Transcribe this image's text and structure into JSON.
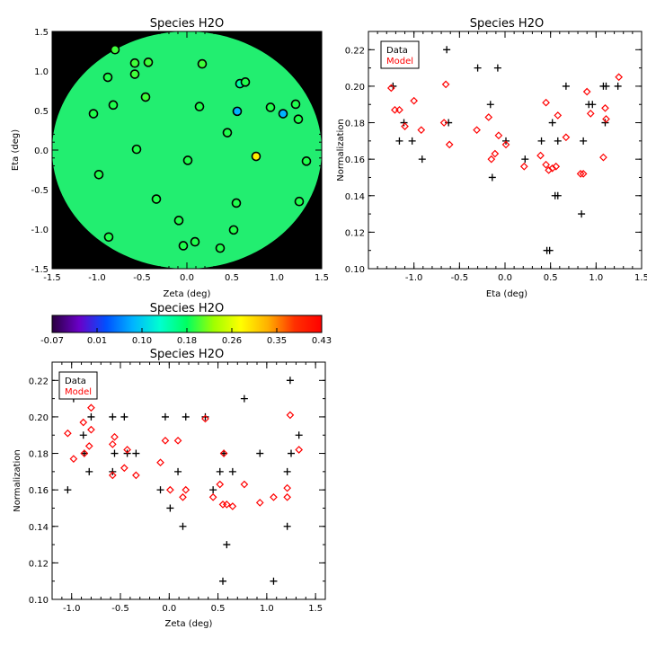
{
  "colors": {
    "data": "#000000",
    "model": "#ff0000",
    "background_mask": "#000000"
  },
  "chart_data": [
    {
      "type": "scatter",
      "subtype": "sky-map",
      "title": "Species H2O",
      "xlabel": "Zeta (deg)",
      "ylabel": "Eta (deg)",
      "xlim": [
        -1.5,
        1.5
      ],
      "ylim": [
        -1.5,
        1.5
      ],
      "xticks": [
        "-1.5",
        "-1.0",
        "-0.5",
        "0.0",
        "0.5",
        "1.0",
        "1.5"
      ],
      "yticks": [
        "-1.5",
        "-1.0",
        "-0.5",
        "0.0",
        "0.5",
        "1.0",
        "1.5"
      ],
      "field_radius": 1.5,
      "points": [
        {
          "x": -0.8,
          "y": 1.27,
          "v": 0.2
        },
        {
          "x": -0.58,
          "y": 1.1,
          "v": 0.2
        },
        {
          "x": -0.43,
          "y": 1.11,
          "v": 0.2
        },
        {
          "x": 0.17,
          "y": 1.09,
          "v": 0.2
        },
        {
          "x": -0.88,
          "y": 0.92,
          "v": 0.19
        },
        {
          "x": -0.58,
          "y": 0.96,
          "v": 0.2
        },
        {
          "x": 0.59,
          "y": 0.84,
          "v": 0.15
        },
        {
          "x": 0.65,
          "y": 0.86,
          "v": 0.19
        },
        {
          "x": -0.46,
          "y": 0.67,
          "v": 0.2
        },
        {
          "x": -0.82,
          "y": 0.57,
          "v": 0.19
        },
        {
          "x": -1.04,
          "y": 0.46,
          "v": 0.19
        },
        {
          "x": 0.14,
          "y": 0.55,
          "v": 0.19
        },
        {
          "x": 0.56,
          "y": 0.49,
          "v": 0.08
        },
        {
          "x": 0.93,
          "y": 0.54,
          "v": 0.19
        },
        {
          "x": 1.07,
          "y": 0.46,
          "v": 0.08
        },
        {
          "x": 1.21,
          "y": 0.58,
          "v": 0.19
        },
        {
          "x": 1.24,
          "y": 0.39,
          "v": 0.19
        },
        {
          "x": 0.45,
          "y": 0.22,
          "v": 0.19
        },
        {
          "x": -0.56,
          "y": 0.01,
          "v": 0.19
        },
        {
          "x": 0.77,
          "y": -0.08,
          "v": 0.29
        },
        {
          "x": 1.33,
          "y": -0.14,
          "v": 0.19
        },
        {
          "x": 0.01,
          "y": -0.13,
          "v": 0.19
        },
        {
          "x": -0.98,
          "y": -0.31,
          "v": 0.19
        },
        {
          "x": -0.34,
          "y": -0.62,
          "v": 0.19
        },
        {
          "x": 0.55,
          "y": -0.67,
          "v": 0.19
        },
        {
          "x": 1.25,
          "y": -0.65,
          "v": 0.19
        },
        {
          "x": -0.09,
          "y": -0.89,
          "v": 0.19
        },
        {
          "x": 0.52,
          "y": -1.01,
          "v": 0.19
        },
        {
          "x": -0.87,
          "y": -1.1,
          "v": 0.19
        },
        {
          "x": 0.09,
          "y": -1.16,
          "v": 0.19
        },
        {
          "x": -0.04,
          "y": -1.21,
          "v": 0.19
        },
        {
          "x": 0.37,
          "y": -1.24,
          "v": 0.19
        }
      ]
    },
    {
      "type": "colorbar",
      "title": "Species H2O",
      "range": [
        -0.07,
        0.43
      ],
      "tick_labels": [
        "-0.07",
        "0.01",
        "0.10",
        "0.18",
        "0.26",
        "0.35",
        "0.43"
      ],
      "stops": [
        "#2a0040",
        "#6a00c8",
        "#0050ff",
        "#00b4ff",
        "#00ffd0",
        "#00ff60",
        "#a0ff00",
        "#ffff00",
        "#ffb000",
        "#ff3000",
        "#ff0000"
      ]
    },
    {
      "type": "scatter",
      "title": "Species H2O",
      "xlabel": "Eta (deg)",
      "ylabel": "Normalization",
      "xlim": [
        -1.5,
        1.5
      ],
      "ylim": [
        0.1,
        0.23
      ],
      "xticks": [
        "-1.0",
        "-0.5",
        "0.0",
        "0.5",
        "1.0",
        "1.5"
      ],
      "yticks": [
        "0.10",
        "0.12",
        "0.14",
        "0.16",
        "0.18",
        "0.20",
        "0.22"
      ],
      "legend": [
        "Data",
        "Model"
      ],
      "legend_position": "top-left",
      "series": [
        {
          "name": "Data",
          "marker": "plus",
          "points": [
            [
              -1.23,
              0.2
            ],
            [
              -1.16,
              0.17
            ],
            [
              -1.11,
              0.18
            ],
            [
              -1.02,
              0.17
            ],
            [
              -0.91,
              0.16
            ],
            [
              -0.64,
              0.22
            ],
            [
              -0.62,
              0.18
            ],
            [
              -0.3,
              0.21
            ],
            [
              -0.16,
              0.19
            ],
            [
              -0.14,
              0.15
            ],
            [
              -0.08,
              0.21
            ],
            [
              0.01,
              0.17
            ],
            [
              0.22,
              0.16
            ],
            [
              0.4,
              0.17
            ],
            [
              0.46,
              0.11
            ],
            [
              0.49,
              0.11
            ],
            [
              0.52,
              0.18
            ],
            [
              0.55,
              0.14
            ],
            [
              0.58,
              0.14
            ],
            [
              0.58,
              0.17
            ],
            [
              0.67,
              0.2
            ],
            [
              0.84,
              0.13
            ],
            [
              0.86,
              0.17
            ],
            [
              0.92,
              0.19
            ],
            [
              0.96,
              0.19
            ],
            [
              1.08,
              0.2
            ],
            [
              1.1,
              0.18
            ],
            [
              1.11,
              0.2
            ],
            [
              1.24,
              0.2
            ]
          ]
        },
        {
          "name": "Model",
          "marker": "diamond",
          "points": [
            [
              -1.25,
              0.199
            ],
            [
              -1.21,
              0.187
            ],
            [
              -1.16,
              0.187
            ],
            [
              -1.1,
              0.178
            ],
            [
              -1.0,
              0.192
            ],
            [
              -0.92,
              0.176
            ],
            [
              -0.67,
              0.18
            ],
            [
              -0.65,
              0.201
            ],
            [
              -0.61,
              0.168
            ],
            [
              -0.31,
              0.176
            ],
            [
              -0.18,
              0.183
            ],
            [
              -0.15,
              0.16
            ],
            [
              -0.11,
              0.163
            ],
            [
              -0.07,
              0.173
            ],
            [
              0.01,
              0.168
            ],
            [
              0.21,
              0.156
            ],
            [
              0.39,
              0.162
            ],
            [
              0.45,
              0.191
            ],
            [
              0.45,
              0.157
            ],
            [
              0.48,
              0.154
            ],
            [
              0.52,
              0.155
            ],
            [
              0.56,
              0.156
            ],
            [
              0.58,
              0.184
            ],
            [
              0.67,
              0.172
            ],
            [
              0.83,
              0.152
            ],
            [
              0.86,
              0.152
            ],
            [
              0.9,
              0.197
            ],
            [
              0.94,
              0.185
            ],
            [
              1.08,
              0.161
            ],
            [
              1.1,
              0.188
            ],
            [
              1.11,
              0.182
            ],
            [
              1.25,
              0.205
            ]
          ]
        }
      ]
    },
    {
      "type": "scatter",
      "title": "Species H2O",
      "xlabel": "Zeta (deg)",
      "ylabel": "Normalization",
      "xlim": [
        -1.2,
        1.6
      ],
      "ylim": [
        0.1,
        0.23
      ],
      "xticks": [
        "-1.0",
        "-0.5",
        "0.0",
        "0.5",
        "1.0",
        "1.5"
      ],
      "yticks": [
        "0.10",
        "0.12",
        "0.14",
        "0.16",
        "0.18",
        "0.20",
        "0.22"
      ],
      "legend": [
        "Data",
        "Model"
      ],
      "legend_position": "top-left",
      "series": [
        {
          "name": "Data",
          "marker": "plus",
          "points": [
            [
              -1.04,
              0.16
            ],
            [
              -0.98,
              0.21
            ],
            [
              -0.88,
              0.19
            ],
            [
              -0.87,
              0.18
            ],
            [
              -0.82,
              0.17
            ],
            [
              -0.8,
              0.2
            ],
            [
              -0.58,
              0.2
            ],
            [
              -0.58,
              0.17
            ],
            [
              -0.56,
              0.18
            ],
            [
              -0.46,
              0.2
            ],
            [
              -0.43,
              0.18
            ],
            [
              -0.34,
              0.18
            ],
            [
              -0.09,
              0.16
            ],
            [
              -0.04,
              0.2
            ],
            [
              0.01,
              0.15
            ],
            [
              0.09,
              0.17
            ],
            [
              0.14,
              0.14
            ],
            [
              0.17,
              0.2
            ],
            [
              0.37,
              0.2
            ],
            [
              0.45,
              0.16
            ],
            [
              0.52,
              0.17
            ],
            [
              0.55,
              0.11
            ],
            [
              0.56,
              0.18
            ],
            [
              0.59,
              0.13
            ],
            [
              0.65,
              0.17
            ],
            [
              0.77,
              0.21
            ],
            [
              0.93,
              0.18
            ],
            [
              1.07,
              0.11
            ],
            [
              1.21,
              0.14
            ],
            [
              1.21,
              0.17
            ],
            [
              1.24,
              0.22
            ],
            [
              1.25,
              0.18
            ],
            [
              1.33,
              0.19
            ]
          ]
        },
        {
          "name": "Model",
          "marker": "diamond",
          "points": [
            [
              -1.04,
              0.191
            ],
            [
              -0.98,
              0.177
            ],
            [
              -0.88,
              0.197
            ],
            [
              -0.87,
              0.18
            ],
            [
              -0.82,
              0.184
            ],
            [
              -0.8,
              0.205
            ],
            [
              -0.8,
              0.193
            ],
            [
              -0.58,
              0.168
            ],
            [
              -0.58,
              0.185
            ],
            [
              -0.56,
              0.189
            ],
            [
              -0.46,
              0.172
            ],
            [
              -0.43,
              0.182
            ],
            [
              -0.34,
              0.168
            ],
            [
              -0.09,
              0.175
            ],
            [
              -0.04,
              0.187
            ],
            [
              0.01,
              0.16
            ],
            [
              0.09,
              0.187
            ],
            [
              0.14,
              0.156
            ],
            [
              0.17,
              0.16
            ],
            [
              0.37,
              0.199
            ],
            [
              0.45,
              0.156
            ],
            [
              0.52,
              0.163
            ],
            [
              0.55,
              0.152
            ],
            [
              0.56,
              0.18
            ],
            [
              0.59,
              0.152
            ],
            [
              0.65,
              0.151
            ],
            [
              0.77,
              0.163
            ],
            [
              0.93,
              0.153
            ],
            [
              1.07,
              0.156
            ],
            [
              1.21,
              0.156
            ],
            [
              1.21,
              0.161
            ],
            [
              1.24,
              0.201
            ],
            [
              1.33,
              0.182
            ]
          ]
        }
      ]
    }
  ]
}
